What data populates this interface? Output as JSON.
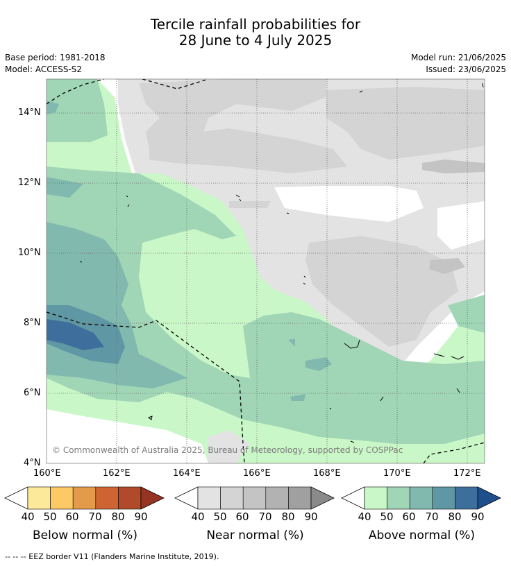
{
  "title_line1": "Tercile rainfall probabilities for",
  "title_line2": "28 June to 4 July 2025",
  "base_period": "Base period: 1981-2018",
  "model": "Model: ACCESS-S2",
  "model_run": "Model run: 21/06/2025",
  "issued": "Issued: 23/06/2025",
  "copyright": "© Commonwealth of Australia 2025, Bureau of Meteorology, supported by COSPPac",
  "lat_labels": [
    "14°N",
    "12°N",
    "10°N",
    "8°N",
    "6°N",
    "4°N"
  ],
  "lon_labels": [
    "160°E",
    "162°E",
    "164°E",
    "166°E",
    "168°E",
    "170°E",
    "172°E"
  ],
  "colorbars": [
    {
      "title": "Below normal (%)",
      "ticks": [
        "40",
        "50",
        "60",
        "70",
        "80",
        "90"
      ],
      "colors": [
        "#fde99a",
        "#fcc964",
        "#e39a4a",
        "#cf6433",
        "#b04a2a",
        "#963322"
      ]
    },
    {
      "title": "Near normal (%)",
      "ticks": [
        "40",
        "50",
        "60",
        "70",
        "80",
        "90"
      ],
      "colors": [
        "#e3e3e3",
        "#d4d4d4",
        "#c4c4c4",
        "#b2b2b2",
        "#a0a0a0",
        "#8a8a8a"
      ]
    },
    {
      "title": "Above normal (%)",
      "ticks": [
        "40",
        "50",
        "60",
        "70",
        "80",
        "90"
      ],
      "colors": [
        "#caf7c8",
        "#a0d6b6",
        "#82b9ae",
        "#5f98a4",
        "#3e6f9c",
        "#1f4e8c"
      ]
    }
  ],
  "footnote": "-- -- -- EEZ border V11 (Flanders Marine Institute, 2019)."
}
